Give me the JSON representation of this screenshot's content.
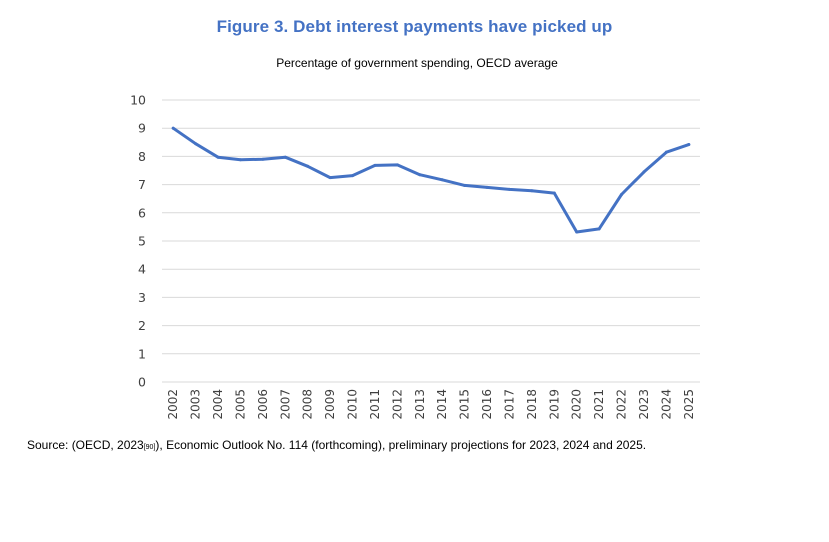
{
  "figure": {
    "title": "Figure 3.  Debt interest payments have picked up",
    "subtitle": "Percentage of government spending, OECD average"
  },
  "source": {
    "prefix": "Source: (OECD, 2023",
    "ref": "[90]",
    "suffix": "), Economic Outlook No. 114 (forthcoming), preliminary projections for 2023, 2024 and 2025."
  },
  "chart_data": {
    "type": "line",
    "title": "Figure 3.  Debt interest payments have picked up",
    "subtitle": "Percentage of government spending, OECD average",
    "xlabel": "",
    "ylabel": "",
    "categories": [
      "2002",
      "2003",
      "2004",
      "2005",
      "2006",
      "2007",
      "2008",
      "2009",
      "2010",
      "2011",
      "2012",
      "2013",
      "2014",
      "2015",
      "2016",
      "2017",
      "2018",
      "2019",
      "2020",
      "2021",
      "2022",
      "2023",
      "2024",
      "2025"
    ],
    "series": [
      {
        "values": [
          9.0,
          8.45,
          7.97,
          7.88,
          7.9,
          7.97,
          7.65,
          7.25,
          7.32,
          7.68,
          7.7,
          7.35,
          7.17,
          6.97,
          6.9,
          6.83,
          6.78,
          6.7,
          5.32,
          5.43,
          6.65,
          7.45,
          8.15,
          8.42
        ],
        "color": "#4472c4"
      }
    ],
    "yticks": [
      "0",
      "1",
      "2",
      "3",
      "4",
      "5",
      "6",
      "7",
      "8",
      "9",
      "10"
    ],
    "ylim": [
      0,
      10
    ],
    "grid": true,
    "legend": "none"
  }
}
